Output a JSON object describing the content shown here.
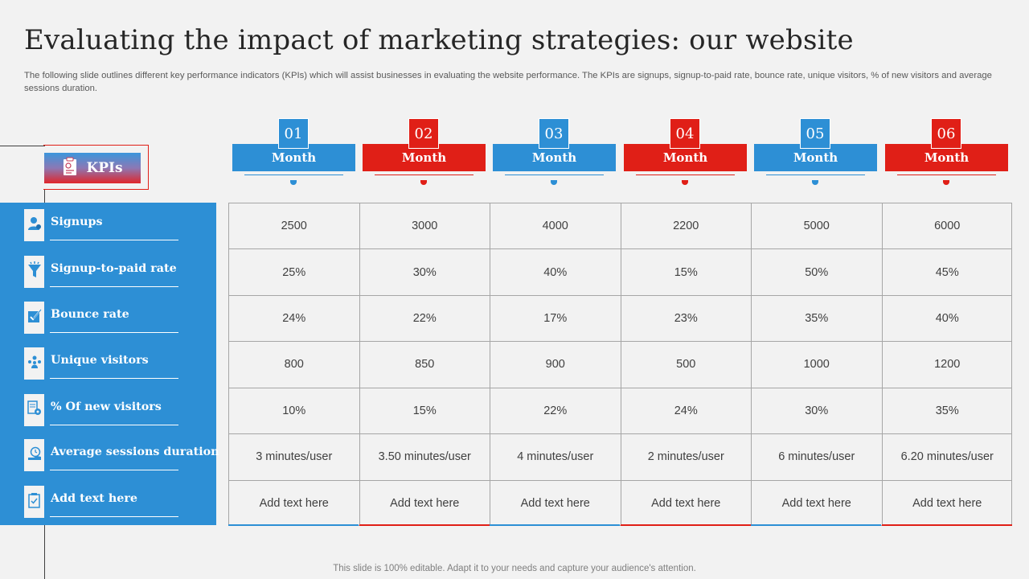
{
  "page": {
    "title": "Evaluating the impact of marketing strategies: our website",
    "subtitle": "The following slide outlines different key performance indicators (KPIs) which will assist businesses in evaluating the website performance. The KPIs are signups, signup-to-paid rate, bounce rate, unique visitors, % of new visitors and average sessions duration.",
    "footer": "This slide is 100% editable. Adapt it to your needs and capture your audience's attention."
  },
  "kpi_header": {
    "label": "KPIs",
    "icon": "clipboard-icon"
  },
  "kpis": [
    {
      "label": "Signups",
      "icon": "user-icon"
    },
    {
      "label": "Signup-to-paid rate",
      "icon": "funnel-icon"
    },
    {
      "label": "Bounce rate",
      "icon": "checkbox-chart-icon"
    },
    {
      "label": "Unique visitors",
      "icon": "people-network-icon"
    },
    {
      "label": "% Of new visitors",
      "icon": "document-gear-icon"
    },
    {
      "label": "Average sessions  duration",
      "icon": "clock-hand-icon"
    },
    {
      "label": "Add text here",
      "icon": "clipboard-check-icon"
    }
  ],
  "months": [
    {
      "number": "01",
      "label": "Month",
      "color": "#2d8fd5"
    },
    {
      "number": "02",
      "label": "Month",
      "color": "#e01f17"
    },
    {
      "number": "03",
      "label": "Month",
      "color": "#2d8fd5"
    },
    {
      "number": "04",
      "label": "Month",
      "color": "#e01f17"
    },
    {
      "number": "05",
      "label": "Month",
      "color": "#2d8fd5"
    },
    {
      "number": "06",
      "label": "Month",
      "color": "#e01f17"
    }
  ],
  "table": [
    [
      "2500",
      "3000",
      "4000",
      "2200",
      "5000",
      "6000"
    ],
    [
      "25%",
      "30%",
      "40%",
      "15%",
      "50%",
      "45%"
    ],
    [
      "24%",
      "22%",
      "17%",
      "23%",
      "35%",
      "40%"
    ],
    [
      "800",
      "850",
      "900",
      "500",
      "1000",
      "1200"
    ],
    [
      "10%",
      "15%",
      "22%",
      "24%",
      "30%",
      "35%"
    ],
    [
      "3 minutes/user",
      "3.50 minutes/user",
      "4 minutes/user",
      "2 minutes/user",
      "6 minutes/user",
      "6.20 minutes/user"
    ],
    [
      "Add text here",
      "Add text here",
      "Add text here",
      "Add text here",
      "Add text here",
      "Add text here"
    ]
  ],
  "colors": {
    "blue": "#2d8fd5",
    "red": "#e01f17",
    "background": "#f2f2f2"
  }
}
